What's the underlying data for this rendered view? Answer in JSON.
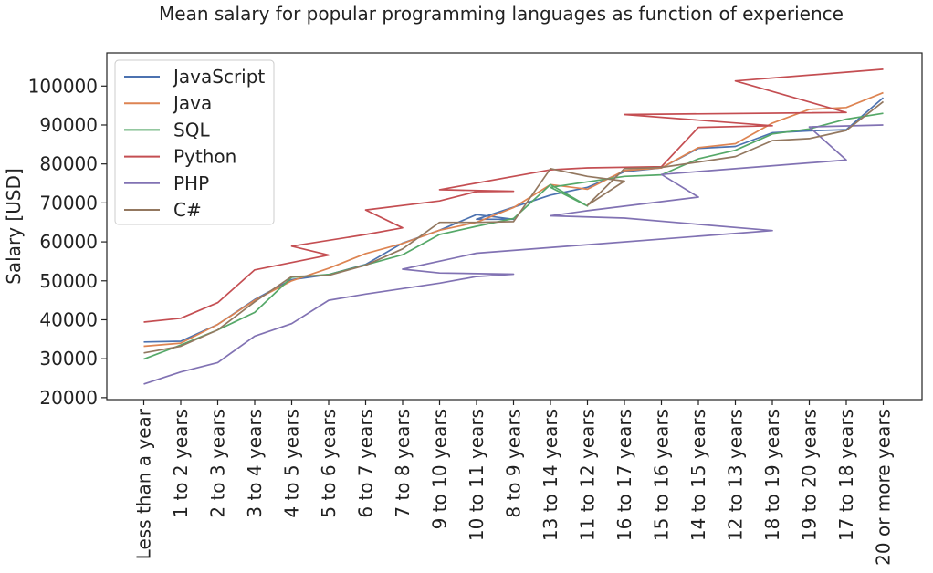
{
  "chart_data": {
    "type": "line",
    "title": "Mean salary for popular programming languages as function of experience",
    "xlabel": "",
    "ylabel": "Salary [USD]",
    "ylim": [
      19500,
      108500
    ],
    "yticks": [
      20000,
      30000,
      40000,
      50000,
      60000,
      70000,
      80000,
      90000,
      100000
    ],
    "grid": false,
    "legend_position": "top-left",
    "categories": [
      "Less than a year",
      "1 to 2 years",
      "2 to 3 years",
      "3 to 4 years",
      "4 to 5 years",
      "5 to 6 years",
      "6 to 7 years",
      "7 to 8 years",
      "9 to 10 years",
      "10 to 11 years",
      "8 to 9 years",
      "13 to 14 years",
      "11 to 12 years",
      "16 to 17 years",
      "15 to 16 years",
      "14 to 15 years",
      "12 to 13 years",
      "18 to 19 years",
      "19 to 20 years",
      "17 to 18 years",
      "20 or more years"
    ],
    "series": [
      {
        "name": "JavaScript",
        "color": "#4c72b0",
        "points": [
          [
            "Less than a year",
            34300
          ],
          [
            "1 to 2 years",
            34500
          ],
          [
            "2 to 3 years",
            38800
          ],
          [
            "3 to 4 years",
            45200
          ],
          [
            "4 to 5 years",
            50300
          ],
          [
            "5 to 6 years",
            51600
          ],
          [
            "6 to 7 years",
            54200
          ],
          [
            "7 to 8 years",
            59700
          ],
          [
            "9 to 10 years",
            63000
          ],
          [
            "10 to 11 years",
            67000
          ],
          [
            "8 to 9 years",
            65800
          ],
          [
            "10 to 11 years",
            65800
          ],
          [
            "13 to 14 years",
            72000
          ],
          [
            "11 to 12 years",
            74000
          ],
          [
            "16 to 17 years",
            78000
          ],
          [
            "15 to 16 years",
            79000
          ],
          [
            "14 to 15 years",
            84000
          ],
          [
            "12 to 13 years",
            84500
          ],
          [
            "18 to 19 years",
            88000
          ],
          [
            "19 to 20 years",
            88500
          ],
          [
            "17 to 18 years",
            88800
          ],
          [
            "20 or more years",
            97000
          ]
        ]
      },
      {
        "name": "Java",
        "color": "#dd8452",
        "points": [
          [
            "Less than a year",
            33200
          ],
          [
            "1 to 2 years",
            34000
          ],
          [
            "2 to 3 years",
            38800
          ],
          [
            "3 to 4 years",
            45000
          ],
          [
            "4 to 5 years",
            50000
          ],
          [
            "5 to 6 years",
            53200
          ],
          [
            "6 to 7 years",
            57000
          ],
          [
            "7 to 8 years",
            59600
          ],
          [
            "9 to 10 years",
            63000
          ],
          [
            "10 to 11 years",
            65000
          ],
          [
            "8 to 9 years",
            68800
          ],
          [
            "13 to 14 years",
            74700
          ],
          [
            "11 to 12 years",
            73500
          ],
          [
            "16 to 17 years",
            78300
          ],
          [
            "15 to 16 years",
            79000
          ],
          [
            "14 to 15 years",
            84200
          ],
          [
            "12 to 13 years",
            85200
          ],
          [
            "18 to 19 years",
            90500
          ],
          [
            "19 to 20 years",
            94000
          ],
          [
            "17 to 18 years",
            94500
          ],
          [
            "20 or more years",
            98300
          ]
        ]
      },
      {
        "name": "SQL",
        "color": "#55a868",
        "points": [
          [
            "Less than a year",
            29900
          ],
          [
            "1 to 2 years",
            33500
          ],
          [
            "2 to 3 years",
            37400
          ],
          [
            "3 to 4 years",
            41900
          ],
          [
            "4 to 5 years",
            50900
          ],
          [
            "5 to 6 years",
            51600
          ],
          [
            "6 to 7 years",
            54100
          ],
          [
            "7 to 8 years",
            56700
          ],
          [
            "9 to 10 years",
            61900
          ],
          [
            "10 to 11 years",
            64000
          ],
          [
            "8 to 9 years",
            66000
          ],
          [
            "13 to 14 years",
            74700
          ],
          [
            "11 to 12 years",
            69200
          ],
          [
            "13 to 14 years",
            74000
          ],
          [
            "16 to 17 years",
            76800
          ],
          [
            "15 to 16 years",
            77200
          ],
          [
            "14 to 15 years",
            81300
          ],
          [
            "12 to 13 years",
            83500
          ],
          [
            "18 to 19 years",
            87700
          ],
          [
            "19 to 20 years",
            89000
          ],
          [
            "17 to 18 years",
            91500
          ],
          [
            "20 or more years",
            93000
          ]
        ]
      },
      {
        "name": "Python",
        "color": "#c44e52",
        "points": [
          [
            "Less than a year",
            39400
          ],
          [
            "1 to 2 years",
            40400
          ],
          [
            "2 to 3 years",
            44400
          ],
          [
            "3 to 4 years",
            52800
          ],
          [
            "4 to 5 years",
            54700
          ],
          [
            "5 to 6 years",
            56600
          ],
          [
            "4 to 5 years",
            58900
          ],
          [
            "6 to 7 years",
            61900
          ],
          [
            "7 to 8 years",
            63600
          ],
          [
            "6 to 7 years",
            68200
          ],
          [
            "9 to 10 years",
            70500
          ],
          [
            "10 to 11 years",
            72900
          ],
          [
            "8 to 9 years",
            73000
          ],
          [
            "9 to 10 years",
            73400
          ],
          [
            "13 to 14 years",
            78500
          ],
          [
            "11 to 12 years",
            79000
          ],
          [
            "15 to 16 years",
            79300
          ],
          [
            "14 to 15 years",
            89400
          ],
          [
            "18 to 19 years",
            89800
          ],
          [
            "16 to 17 years",
            92700
          ],
          [
            "17 to 18 years",
            93200
          ],
          [
            "12 to 13 years",
            101300
          ],
          [
            "20 or more years",
            104300
          ]
        ]
      },
      {
        "name": "PHP",
        "color": "#8172b3",
        "points": [
          [
            "Less than a year",
            23500
          ],
          [
            "1 to 2 years",
            26600
          ],
          [
            "2 to 3 years",
            29000
          ],
          [
            "3 to 4 years",
            35800
          ],
          [
            "4 to 5 years",
            39000
          ],
          [
            "5 to 6 years",
            45000
          ],
          [
            "6 to 7 years",
            46600
          ],
          [
            "7 to 8 years",
            48000
          ],
          [
            "9 to 10 years",
            49400
          ],
          [
            "10 to 11 years",
            51100
          ],
          [
            "8 to 9 years",
            51700
          ],
          [
            "9 to 10 years",
            52000
          ],
          [
            "7 to 8 years",
            53000
          ],
          [
            "10 to 11 years",
            57100
          ],
          [
            "18 to 19 years",
            62900
          ],
          [
            "16 to 17 years",
            66100
          ],
          [
            "13 to 14 years",
            66700
          ],
          [
            "11 to 12 years",
            68000
          ],
          [
            "14 to 15 years",
            71500
          ],
          [
            "15 to 16 years",
            77300
          ],
          [
            "17 to 18 years",
            81000
          ],
          [
            "19 to 20 years",
            89500
          ],
          [
            "20 or more years",
            90000
          ]
        ]
      },
      {
        "name": "C#",
        "color": "#937860",
        "points": [
          [
            "Less than a year",
            31500
          ],
          [
            "1 to 2 years",
            33200
          ],
          [
            "2 to 3 years",
            37400
          ],
          [
            "3 to 4 years",
            44600
          ],
          [
            "4 to 5 years",
            51100
          ],
          [
            "5 to 6 years",
            51400
          ],
          [
            "6 to 7 years",
            54000
          ],
          [
            "7 to 8 years",
            58200
          ],
          [
            "9 to 10 years",
            65000
          ],
          [
            "10 to 11 years",
            65000
          ],
          [
            "8 to 9 years",
            65200
          ],
          [
            "13 to 14 years",
            78800
          ],
          [
            "11 to 12 years",
            76800
          ],
          [
            "16 to 17 years",
            75600
          ],
          [
            "11 to 12 years",
            69400
          ],
          [
            "16 to 17 years",
            78800
          ],
          [
            "15 to 16 years",
            79100
          ],
          [
            "14 to 15 years",
            80500
          ],
          [
            "12 to 13 years",
            81900
          ],
          [
            "18 to 19 years",
            86000
          ],
          [
            "19 to 20 years",
            86500
          ],
          [
            "17 to 18 years",
            88600
          ],
          [
            "20 or more years",
            96000
          ]
        ]
      }
    ]
  }
}
